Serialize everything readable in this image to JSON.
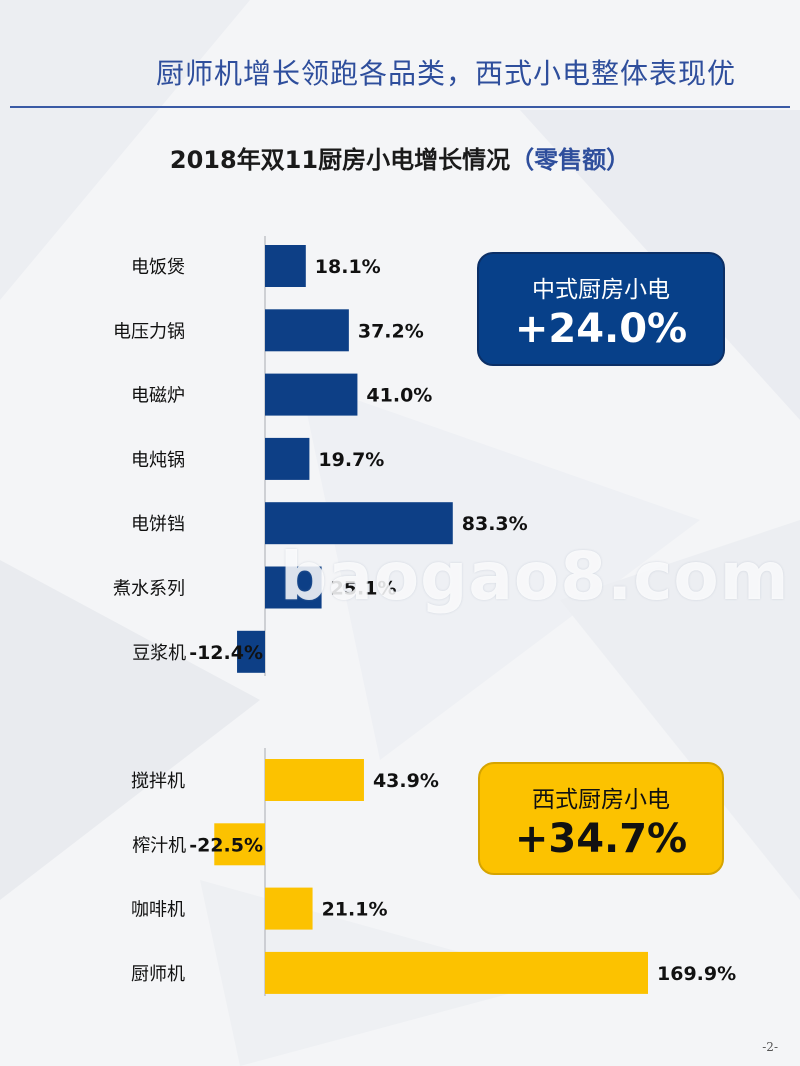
{
  "header": {
    "title": "厨师机增长领跑各品类，西式小电整体表现优"
  },
  "chart_title": {
    "main": "2018年双11厨房小电增长情况",
    "suffix": "（零售额）"
  },
  "chart_data": {
    "type": "bar",
    "orientation": "horizontal",
    "unit": "%",
    "groups": [
      {
        "color": "#0d3f86",
        "categories": [
          "电饭煲",
          "电压力锅",
          "电磁炉",
          "电炖锅",
          "电饼铛",
          "煮水系列",
          "豆浆机"
        ],
        "values": [
          18.1,
          37.2,
          41.0,
          19.7,
          83.3,
          25.1,
          -12.4
        ],
        "labels": [
          "18.1%",
          "37.2%",
          "41.0%",
          "19.7%",
          "83.3%",
          "25.1%",
          "-12.4%"
        ]
      },
      {
        "color": "#fcc200",
        "categories": [
          "搅拌机",
          "榨汁机",
          "咖啡机",
          "厨师机"
        ],
        "values": [
          43.9,
          -22.5,
          21.1,
          169.9
        ],
        "labels": [
          "43.9%",
          "-22.5%",
          "21.1%",
          "169.9%"
        ]
      }
    ]
  },
  "callouts": {
    "chinese": {
      "label": "中式厨房小电",
      "value": "+24.0%"
    },
    "western": {
      "label": "西式厨房小电",
      "value": "+34.7%"
    }
  },
  "watermark": "baogao8.com",
  "page_number": "-2-",
  "colors": {
    "accent_blue": "#0d3f86",
    "accent_yellow": "#fcc200",
    "title_blue": "#2e4e9c"
  }
}
